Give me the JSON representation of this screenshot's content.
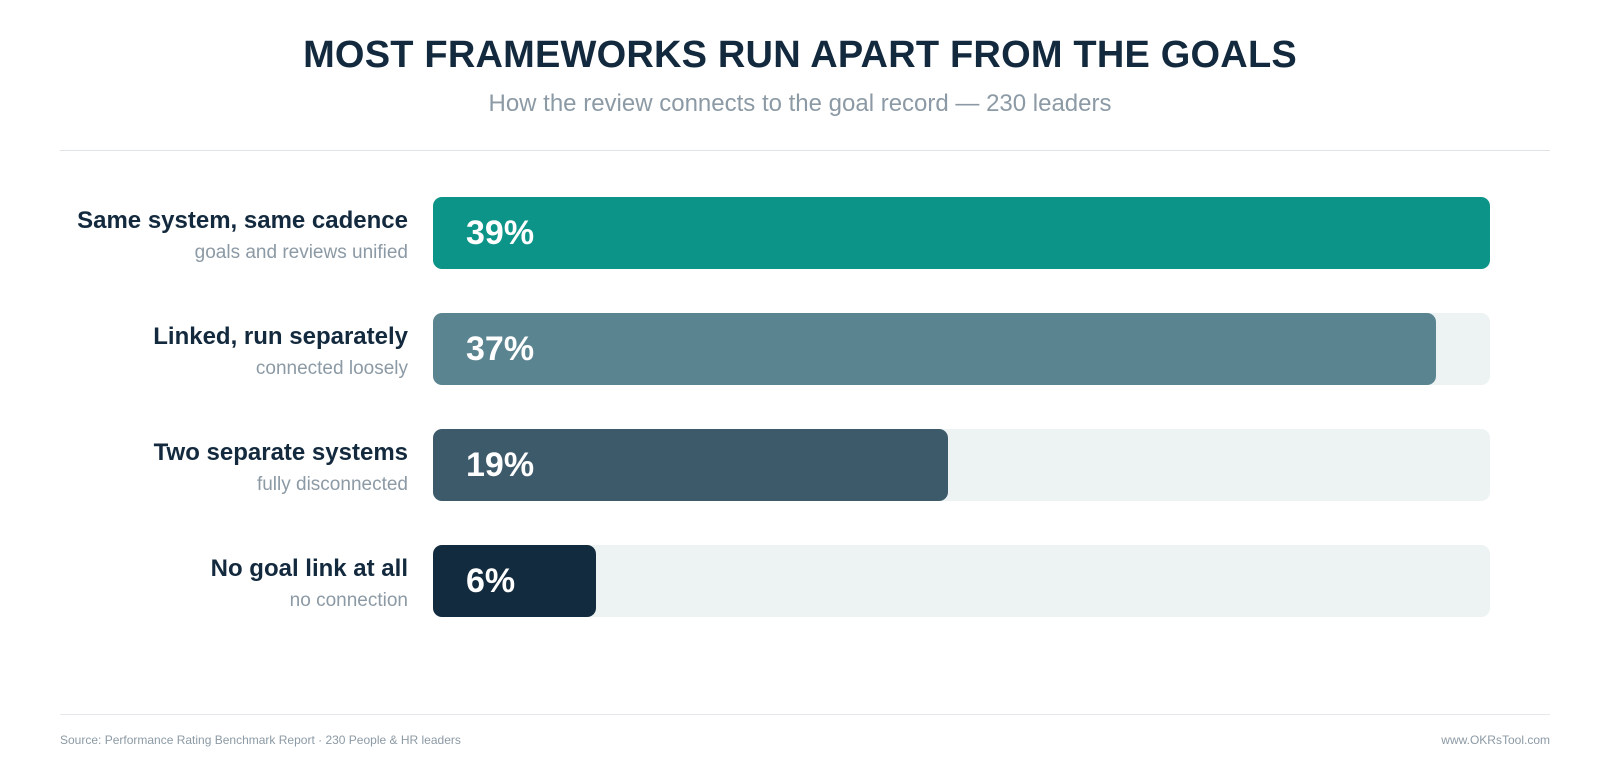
{
  "header": {
    "title": "MOST FRAMEWORKS RUN APART FROM THE GOALS",
    "subtitle": "How the review connects to the goal record — 230 leaders"
  },
  "chart_data": {
    "type": "bar",
    "orientation": "horizontal",
    "title": "MOST FRAMEWORKS RUN APART FROM THE GOALS",
    "subtitle": "How the review connects to the goal record — 230 leaders",
    "xlim": [
      0,
      39
    ],
    "grid": false,
    "categories": [
      "Same system, same cadence",
      "Linked, run separately",
      "Two separate systems",
      "No goal link at all"
    ],
    "descriptions": [
      "goals and reviews unified",
      "connected loosely",
      "fully disconnected",
      "no connection"
    ],
    "values": [
      39,
      37,
      19,
      6
    ],
    "value_labels": [
      "39%",
      "37%",
      "19%",
      "6%"
    ],
    "colors": [
      "#0d9488",
      "#5b8491",
      "#3d5a6b",
      "#132b3e"
    ],
    "track_color": "#edf2f2"
  },
  "footer": {
    "source": "Source: Performance Rating Benchmark Report · 230 People & HR leaders",
    "site": "www.OKRsTool.com"
  }
}
